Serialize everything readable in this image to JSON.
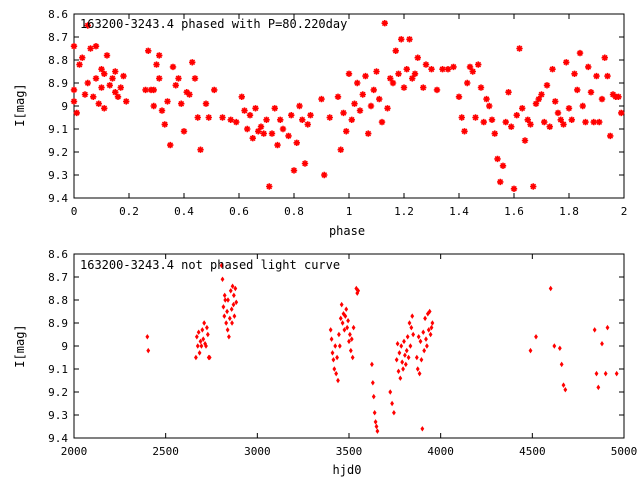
{
  "colors": {
    "marker": "#ff0000",
    "axis": "#000000",
    "background": "#ffffff"
  },
  "chart_data": [
    {
      "type": "scatter",
      "title": "163200-3243.4 phased with P=80.220day",
      "xlabel": "phase",
      "ylabel": "I[mag]",
      "xlim": [
        0,
        2
      ],
      "ylim": [
        8.6,
        9.4
      ],
      "y_inverted": true,
      "grid": false,
      "marker": "star",
      "x_ticks": [
        0,
        0.2,
        0.4,
        0.6,
        0.8,
        1,
        1.2,
        1.4,
        1.6,
        1.8,
        2
      ],
      "x_tick_labels": [
        "0",
        "0.2",
        "0.4",
        "0.6",
        "0.8",
        "1",
        "1.2",
        "1.4",
        "1.6",
        "1.8",
        "2"
      ],
      "y_ticks": [
        8.6,
        8.7,
        8.8,
        8.9,
        9,
        9.1,
        9.2,
        9.3,
        9.4
      ],
      "y_tick_labels": [
        "8.6",
        "8.7",
        "8.8",
        "8.9",
        "9",
        "9.1",
        "9.2",
        "9.3",
        "9.4"
      ],
      "points": [
        [
          0.0,
          8.74
        ],
        [
          0.0,
          8.93
        ],
        [
          0.0,
          8.98
        ],
        [
          0.01,
          9.03
        ],
        [
          0.02,
          8.82
        ],
        [
          0.03,
          8.79
        ],
        [
          0.04,
          8.95
        ],
        [
          0.05,
          8.65
        ],
        [
          0.05,
          8.9
        ],
        [
          0.06,
          8.75
        ],
        [
          0.07,
          8.96
        ],
        [
          0.08,
          8.74
        ],
        [
          0.08,
          8.88
        ],
        [
          0.09,
          8.99
        ],
        [
          0.1,
          8.84
        ],
        [
          0.1,
          8.92
        ],
        [
          0.11,
          9.01
        ],
        [
          0.11,
          8.86
        ],
        [
          0.12,
          8.78
        ],
        [
          0.13,
          8.91
        ],
        [
          0.14,
          8.88
        ],
        [
          0.15,
          8.94
        ],
        [
          0.15,
          8.85
        ],
        [
          0.16,
          8.96
        ],
        [
          0.17,
          8.92
        ],
        [
          0.18,
          8.87
        ],
        [
          0.19,
          8.98
        ],
        [
          0.26,
          8.93
        ],
        [
          0.27,
          8.76
        ],
        [
          0.28,
          8.93
        ],
        [
          0.29,
          8.93
        ],
        [
          0.29,
          9.0
        ],
        [
          0.3,
          8.82
        ],
        [
          0.31,
          8.78
        ],
        [
          0.31,
          8.88
        ],
        [
          0.32,
          9.02
        ],
        [
          0.33,
          9.08
        ],
        [
          0.34,
          8.98
        ],
        [
          0.35,
          9.17
        ],
        [
          0.36,
          8.83
        ],
        [
          0.37,
          8.91
        ],
        [
          0.38,
          8.88
        ],
        [
          0.39,
          8.99
        ],
        [
          0.4,
          9.11
        ],
        [
          0.41,
          8.94
        ],
        [
          0.42,
          8.95
        ],
        [
          0.43,
          8.81
        ],
        [
          0.44,
          8.88
        ],
        [
          0.45,
          9.05
        ],
        [
          0.46,
          9.19
        ],
        [
          0.48,
          8.99
        ],
        [
          0.49,
          9.05
        ],
        [
          0.51,
          8.93
        ],
        [
          0.54,
          9.05
        ],
        [
          0.57,
          9.06
        ],
        [
          0.59,
          9.07
        ],
        [
          0.61,
          8.96
        ],
        [
          0.62,
          9.02
        ],
        [
          0.63,
          9.1
        ],
        [
          0.64,
          9.04
        ],
        [
          0.65,
          9.14
        ],
        [
          0.66,
          9.01
        ],
        [
          0.67,
          9.11
        ],
        [
          0.68,
          9.09
        ],
        [
          0.69,
          9.12
        ],
        [
          0.7,
          9.06
        ],
        [
          0.71,
          9.35
        ],
        [
          0.72,
          9.12
        ],
        [
          0.73,
          9.01
        ],
        [
          0.74,
          9.17
        ],
        [
          0.75,
          9.06
        ],
        [
          0.76,
          9.1
        ],
        [
          0.78,
          9.13
        ],
        [
          0.79,
          9.04
        ],
        [
          0.8,
          9.28
        ],
        [
          0.81,
          9.16
        ],
        [
          0.82,
          9.0
        ],
        [
          0.83,
          9.06
        ],
        [
          0.84,
          9.25
        ],
        [
          0.85,
          9.08
        ],
        [
          0.86,
          9.04
        ],
        [
          0.9,
          8.97
        ],
        [
          0.91,
          9.3
        ],
        [
          0.93,
          9.05
        ],
        [
          0.96,
          8.96
        ],
        [
          0.97,
          9.19
        ],
        [
          0.98,
          9.03
        ],
        [
          0.99,
          9.11
        ],
        [
          1.0,
          8.86
        ],
        [
          1.01,
          9.06
        ],
        [
          1.02,
          8.99
        ],
        [
          1.03,
          8.9
        ],
        [
          1.04,
          9.02
        ],
        [
          1.05,
          8.95
        ],
        [
          1.06,
          8.87
        ],
        [
          1.07,
          9.12
        ],
        [
          1.08,
          9.0
        ],
        [
          1.09,
          8.93
        ],
        [
          1.1,
          8.85
        ],
        [
          1.11,
          8.97
        ],
        [
          1.12,
          9.07
        ],
        [
          1.13,
          8.64
        ],
        [
          1.14,
          9.01
        ],
        [
          1.15,
          8.88
        ],
        [
          1.16,
          8.9
        ],
        [
          1.17,
          8.76
        ],
        [
          1.18,
          8.86
        ],
        [
          1.19,
          8.71
        ],
        [
          1.2,
          8.92
        ],
        [
          1.21,
          8.84
        ],
        [
          1.22,
          8.71
        ],
        [
          1.23,
          8.88
        ],
        [
          1.24,
          8.86
        ],
        [
          1.25,
          8.79
        ],
        [
          1.27,
          8.92
        ],
        [
          1.28,
          8.82
        ],
        [
          1.3,
          8.84
        ],
        [
          1.32,
          8.93
        ],
        [
          1.34,
          8.84
        ],
        [
          1.36,
          8.84
        ],
        [
          1.38,
          8.83
        ],
        [
          1.4,
          8.96
        ],
        [
          1.41,
          9.05
        ],
        [
          1.42,
          9.11
        ],
        [
          1.43,
          8.9
        ],
        [
          1.44,
          8.83
        ],
        [
          1.45,
          8.85
        ],
        [
          1.46,
          9.05
        ],
        [
          1.47,
          8.82
        ],
        [
          1.48,
          8.92
        ],
        [
          1.49,
          9.07
        ],
        [
          1.5,
          8.97
        ],
        [
          1.51,
          9.0
        ],
        [
          1.52,
          9.06
        ],
        [
          1.53,
          9.12
        ],
        [
          1.54,
          9.23
        ],
        [
          1.55,
          9.33
        ],
        [
          1.56,
          9.26
        ],
        [
          1.57,
          9.07
        ],
        [
          1.58,
          8.94
        ],
        [
          1.59,
          9.09
        ],
        [
          1.6,
          9.36
        ],
        [
          1.61,
          9.04
        ],
        [
          1.62,
          8.75
        ],
        [
          1.63,
          9.01
        ],
        [
          1.64,
          9.15
        ],
        [
          1.65,
          9.06
        ],
        [
          1.66,
          9.08
        ],
        [
          1.67,
          9.35
        ],
        [
          1.68,
          8.99
        ],
        [
          1.69,
          8.97
        ],
        [
          1.7,
          8.95
        ],
        [
          1.71,
          9.07
        ],
        [
          1.72,
          8.91
        ],
        [
          1.73,
          9.09
        ],
        [
          1.74,
          8.84
        ],
        [
          1.75,
          8.98
        ],
        [
          1.76,
          9.03
        ],
        [
          1.77,
          9.06
        ],
        [
          1.78,
          9.08
        ],
        [
          1.79,
          8.81
        ],
        [
          1.8,
          9.01
        ],
        [
          1.81,
          9.06
        ],
        [
          1.82,
          8.86
        ],
        [
          1.83,
          8.93
        ],
        [
          1.84,
          8.77
        ],
        [
          1.85,
          9.0
        ],
        [
          1.86,
          9.07
        ],
        [
          1.87,
          8.83
        ],
        [
          1.88,
          8.94
        ],
        [
          1.89,
          9.07
        ],
        [
          1.9,
          8.87
        ],
        [
          1.91,
          9.07
        ],
        [
          1.92,
          8.97
        ],
        [
          1.93,
          8.79
        ],
        [
          1.94,
          8.87
        ],
        [
          1.95,
          9.13
        ],
        [
          1.96,
          8.95
        ],
        [
          1.97,
          8.96
        ],
        [
          1.98,
          8.96
        ],
        [
          1.99,
          9.03
        ]
      ]
    },
    {
      "type": "scatter",
      "title": "163200-3243.4 not phased light curve",
      "xlabel": "hjd0",
      "ylabel": "I[mag]",
      "xlim": [
        2000,
        5000
      ],
      "ylim": [
        8.6,
        9.4
      ],
      "y_inverted": true,
      "grid": false,
      "marker": "diamond",
      "x_ticks": [
        2000,
        2500,
        3000,
        3500,
        4000,
        4500,
        5000
      ],
      "x_tick_labels": [
        "2000",
        "2500",
        "3000",
        "3500",
        "4000",
        "4500",
        "5000"
      ],
      "y_ticks": [
        8.6,
        8.7,
        8.8,
        8.9,
        9,
        9.1,
        9.2,
        9.3,
        9.4
      ],
      "y_tick_labels": [
        "8.6",
        "8.7",
        "8.8",
        "8.9",
        "9",
        "9.1",
        "9.2",
        "9.3",
        "9.4"
      ],
      "points": [
        [
          2400,
          8.96
        ],
        [
          2405,
          9.02
        ],
        [
          2665,
          9.05
        ],
        [
          2670,
          8.96
        ],
        [
          2675,
          9.0
        ],
        [
          2680,
          8.94
        ],
        [
          2685,
          9.03
        ],
        [
          2690,
          8.98
        ],
        [
          2695,
          9.0
        ],
        [
          2700,
          8.93
        ],
        [
          2705,
          8.97
        ],
        [
          2710,
          8.9
        ],
        [
          2715,
          8.99
        ],
        [
          2720,
          9.0
        ],
        [
          2725,
          8.92
        ],
        [
          2730,
          8.95
        ],
        [
          2735,
          9.05
        ],
        [
          2740,
          9.05
        ],
        [
          2805,
          8.65
        ],
        [
          2810,
          8.71
        ],
        [
          2815,
          8.83
        ],
        [
          2820,
          8.87
        ],
        [
          2822,
          8.78
        ],
        [
          2825,
          8.8
        ],
        [
          2830,
          8.9
        ],
        [
          2835,
          8.85
        ],
        [
          2838,
          8.93
        ],
        [
          2840,
          8.8
        ],
        [
          2845,
          8.96
        ],
        [
          2850,
          8.88
        ],
        [
          2855,
          8.76
        ],
        [
          2860,
          8.84
        ],
        [
          2862,
          8.9
        ],
        [
          2865,
          8.74
        ],
        [
          2870,
          8.82
        ],
        [
          2872,
          8.78
        ],
        [
          2875,
          8.87
        ],
        [
          2880,
          8.75
        ],
        [
          2885,
          8.81
        ],
        [
          3400,
          8.93
        ],
        [
          3405,
          8.97
        ],
        [
          3410,
          9.03
        ],
        [
          3415,
          9.06
        ],
        [
          3420,
          9.1
        ],
        [
          3425,
          9.0
        ],
        [
          3430,
          9.12
        ],
        [
          3435,
          9.05
        ],
        [
          3440,
          9.15
        ],
        [
          3445,
          8.95
        ],
        [
          3450,
          9.0
        ],
        [
          3455,
          8.88
        ],
        [
          3460,
          8.82
        ],
        [
          3465,
          8.9
        ],
        [
          3470,
          8.86
        ],
        [
          3475,
          8.93
        ],
        [
          3480,
          8.87
        ],
        [
          3485,
          8.84
        ],
        [
          3490,
          8.92
        ],
        [
          3495,
          8.89
        ],
        [
          3500,
          8.98
        ],
        [
          3505,
          8.95
        ],
        [
          3510,
          9.02
        ],
        [
          3515,
          8.97
        ],
        [
          3520,
          9.05
        ],
        [
          3525,
          8.92
        ],
        [
          3540,
          8.75
        ],
        [
          3545,
          8.77
        ],
        [
          3550,
          8.76
        ],
        [
          3625,
          9.08
        ],
        [
          3630,
          9.16
        ],
        [
          3635,
          9.22
        ],
        [
          3640,
          9.29
        ],
        [
          3645,
          9.33
        ],
        [
          3650,
          9.35
        ],
        [
          3655,
          9.37
        ],
        [
          3725,
          9.2
        ],
        [
          3735,
          9.25
        ],
        [
          3745,
          9.29
        ],
        [
          3760,
          9.06
        ],
        [
          3765,
          8.99
        ],
        [
          3770,
          9.11
        ],
        [
          3775,
          9.03
        ],
        [
          3780,
          9.14
        ],
        [
          3785,
          9.0
        ],
        [
          3790,
          9.07
        ],
        [
          3795,
          9.1
        ],
        [
          3800,
          8.98
        ],
        [
          3805,
          9.04
        ],
        [
          3810,
          9.08
        ],
        [
          3815,
          9.02
        ],
        [
          3820,
          8.96
        ],
        [
          3825,
          9.05
        ],
        [
          3830,
          8.9
        ],
        [
          3835,
          9.0
        ],
        [
          3840,
          8.92
        ],
        [
          3845,
          8.87
        ],
        [
          3850,
          8.95
        ],
        [
          3870,
          9.05
        ],
        [
          3875,
          9.1
        ],
        [
          3880,
          8.96
        ],
        [
          3885,
          9.12
        ],
        [
          3890,
          8.98
        ],
        [
          3895,
          9.06
        ],
        [
          3900,
          9.36
        ],
        [
          3905,
          8.94
        ],
        [
          3910,
          9.02
        ],
        [
          3915,
          8.88
        ],
        [
          3920,
          8.97
        ],
        [
          3925,
          9.0
        ],
        [
          3930,
          8.86
        ],
        [
          3935,
          8.93
        ],
        [
          3940,
          8.85
        ],
        [
          3945,
          8.95
        ],
        [
          3950,
          8.92
        ],
        [
          3955,
          8.9
        ],
        [
          4490,
          9.02
        ],
        [
          4520,
          8.96
        ],
        [
          4600,
          8.75
        ],
        [
          4620,
          9.0
        ],
        [
          4650,
          9.01
        ],
        [
          4660,
          9.08
        ],
        [
          4670,
          9.17
        ],
        [
          4680,
          9.19
        ],
        [
          4840,
          8.93
        ],
        [
          4850,
          9.12
        ],
        [
          4860,
          9.18
        ],
        [
          4880,
          8.99
        ],
        [
          4900,
          9.12
        ],
        [
          4910,
          8.92
        ],
        [
          4960,
          9.12
        ]
      ]
    }
  ]
}
